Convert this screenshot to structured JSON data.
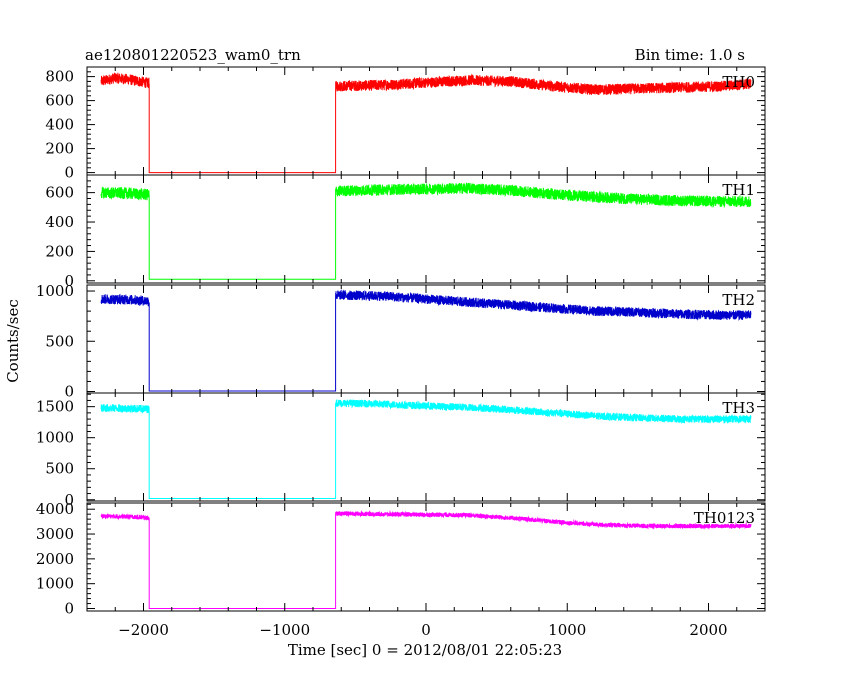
{
  "header": {
    "title": "ae120801220523_wam0_trn",
    "bin_time": "Bin time: 1.0 s"
  },
  "chart_data": {
    "type": "line",
    "xlabel": "Time [sec] 0 = 2012/08/01 22:05:23",
    "ylabel": "Counts/sec",
    "xlim": [
      -2400,
      2400
    ],
    "x_ticks": [
      -2000,
      -1000,
      0,
      1000,
      2000
    ],
    "x_tick_labels": [
      "−2000",
      "−1000",
      "0",
      "1000",
      "2000"
    ],
    "panels": [
      {
        "name": "TH0",
        "color": "#ff0000",
        "ylim": [
          -20,
          880
        ],
        "yticks": [
          0,
          200,
          400,
          600,
          800
        ],
        "segments": [
          {
            "x": [
              -2300,
              -2200,
              -2100,
              -1960
            ],
            "y": [
              760,
              790,
              775,
              745
            ],
            "noise": 45
          },
          {
            "x": [
              -1960,
              -640
            ],
            "y": [
              0,
              0
            ],
            "noise": 0
          },
          {
            "x": [
              -640,
              -300,
              0,
              300,
              600,
              900,
              1200,
              1500,
              1800,
              2100,
              2300
            ],
            "y": [
              720,
              730,
              750,
              770,
              760,
              720,
              690,
              700,
              710,
              720,
              740
            ],
            "noise": 45
          }
        ]
      },
      {
        "name": "TH1",
        "color": "#00ff00",
        "ylim": [
          -15,
          720
        ],
        "yticks": [
          0,
          200,
          400,
          600
        ],
        "segments": [
          {
            "x": [
              -2300,
              -2100,
              -1960
            ],
            "y": [
              600,
              595,
              585
            ],
            "noise": 40
          },
          {
            "x": [
              -1960,
              -640
            ],
            "y": [
              10,
              10
            ],
            "noise": 0
          },
          {
            "x": [
              -640,
              -300,
              0,
              300,
              600,
              900,
              1200,
              1500,
              1800,
              2100,
              2300
            ],
            "y": [
              610,
              620,
              625,
              630,
              615,
              590,
              570,
              555,
              545,
              540,
              540
            ],
            "noise": 38
          }
        ]
      },
      {
        "name": "TH2",
        "color": "#0000cc",
        "ylim": [
          -15,
          1060
        ],
        "yticks": [
          0,
          500,
          1000
        ],
        "segments": [
          {
            "x": [
              -2300,
              -2100,
              -1960
            ],
            "y": [
              920,
              915,
              900
            ],
            "noise": 50
          },
          {
            "x": [
              -1960,
              -640
            ],
            "y": [
              5,
              5
            ],
            "noise": 0
          },
          {
            "x": [
              -640,
              -300,
              0,
              300,
              600,
              900,
              1200,
              1500,
              1800,
              2100,
              2300
            ],
            "y": [
              960,
              950,
              920,
              890,
              860,
              830,
              800,
              790,
              770,
              760,
              760
            ],
            "noise": 48
          }
        ]
      },
      {
        "name": "TH3",
        "color": "#00ffff",
        "ylim": [
          -20,
          1720
        ],
        "yticks": [
          0,
          500,
          1000,
          1500
        ],
        "segments": [
          {
            "x": [
              -2300,
              -2100,
              -1960
            ],
            "y": [
              1480,
              1470,
              1460
            ],
            "noise": 65
          },
          {
            "x": [
              -1960,
              -640
            ],
            "y": [
              20,
              20
            ],
            "noise": 0
          },
          {
            "x": [
              -640,
              -300,
              0,
              300,
              600,
              900,
              1200,
              1500,
              1800,
              2100,
              2300
            ],
            "y": [
              1560,
              1540,
              1510,
              1490,
              1450,
              1400,
              1350,
              1320,
              1300,
              1300,
              1300
            ],
            "noise": 60
          }
        ]
      },
      {
        "name": "TH0123",
        "color": "#ff00ff",
        "ylim": [
          -100,
          4250
        ],
        "yticks": [
          0,
          1000,
          2000,
          3000,
          4000
        ],
        "segments": [
          {
            "x": [
              -2300,
              -2100,
              -1960
            ],
            "y": [
              3720,
              3700,
              3650
            ],
            "noise": 90
          },
          {
            "x": [
              -1960,
              -640
            ],
            "y": [
              0,
              0
            ],
            "noise": 0
          },
          {
            "x": [
              -640,
              -300,
              0,
              300,
              600,
              900,
              1200,
              1500,
              1800,
              2100,
              2300
            ],
            "y": [
              3830,
              3800,
              3780,
              3760,
              3650,
              3500,
              3380,
              3330,
              3320,
              3320,
              3330
            ],
            "noise": 90
          }
        ]
      }
    ]
  }
}
